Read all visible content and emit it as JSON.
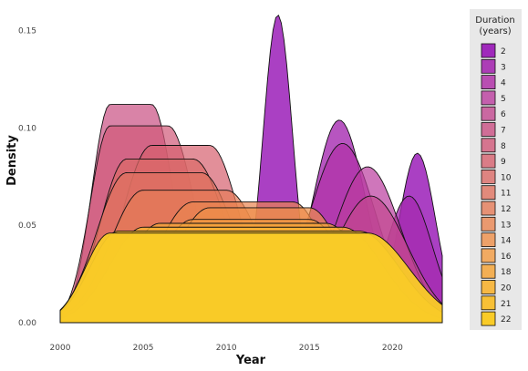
{
  "chart_data": {
    "type": "area",
    "subtype": "overlapping density",
    "xlabel": "Year",
    "ylabel": "Density",
    "xlim": [
      2000,
      2023
    ],
    "ylim": [
      0,
      0.16
    ],
    "x_ticks": [
      2000,
      2005,
      2010,
      2015,
      2020
    ],
    "y_ticks": [
      "0.00",
      "0.05",
      "0.10",
      "0.15"
    ],
    "legend": {
      "title_line1": "Duration",
      "title_line2": "(years)",
      "position": "right"
    },
    "series": [
      {
        "name": "2",
        "color": "#9B1FB8",
        "fill_opacity": 0.85,
        "peaks": [
          {
            "center": 2013.1,
            "peak": 0.158,
            "sd": 0.9
          },
          {
            "center": 2021.5,
            "peak": 0.087,
            "sd": 1.1
          }
        ]
      },
      {
        "name": "3",
        "color": "#A52AB0",
        "fill_opacity": 0.8,
        "peaks": [
          {
            "center": 2016.8,
            "peak": 0.104,
            "sd": 1.6
          },
          {
            "center": 2021.0,
            "peak": 0.065,
            "sd": 1.4
          }
        ]
      },
      {
        "name": "4",
        "color": "#B032A8",
        "fill_opacity": 0.75,
        "peaks": [
          {
            "center": 2017.0,
            "peak": 0.092,
            "sd": 2.0
          }
        ]
      },
      {
        "name": "5",
        "color": "#BA3C9E",
        "fill_opacity": 0.7,
        "peaks": [
          {
            "center": 2018.5,
            "peak": 0.08,
            "sd": 2.0
          }
        ]
      },
      {
        "name": "6",
        "color": "#C2478F",
        "fill_opacity": 0.7,
        "peaks": [
          {
            "center": 2018.7,
            "peak": 0.065,
            "sd": 2.2
          }
        ]
      },
      {
        "name": "7",
        "color": "#C94F82",
        "fill_opacity": 0.7,
        "plateau": [
          2003.0,
          2005.5
        ],
        "level": 0.112,
        "rise_sd": 1.1,
        "fall_sd": 1.3
      },
      {
        "name": "8",
        "color": "#D05878",
        "fill_opacity": 0.7,
        "plateau": [
          2003.0,
          2006.5
        ],
        "level": 0.101,
        "rise_sd": 1.2,
        "fall_sd": 1.6
      },
      {
        "name": "9",
        "color": "#D6606E",
        "fill_opacity": 0.7,
        "plateau": [
          2005.5,
          2009.0
        ],
        "level": 0.091,
        "rise_sd": 1.8,
        "fall_sd": 1.8
      },
      {
        "name": "10",
        "color": "#DB6A66",
        "fill_opacity": 0.7,
        "plateau": [
          2004.0,
          2008.0
        ],
        "level": 0.084,
        "rise_sd": 1.6,
        "fall_sd": 2.0
      },
      {
        "name": "11",
        "color": "#E0725F",
        "fill_opacity": 0.7,
        "plateau": [
          2004.0,
          2008.5
        ],
        "level": 0.077,
        "rise_sd": 1.8,
        "fall_sd": 2.0
      },
      {
        "name": "12",
        "color": "#E57B57",
        "fill_opacity": 0.7,
        "plateau": [
          2005.0,
          2010.0
        ],
        "level": 0.068,
        "rise_sd": 2.0,
        "fall_sd": 2.1
      },
      {
        "name": "13",
        "color": "#EA8550",
        "fill_opacity": 0.7,
        "plateau": [
          2008.0,
          2014.0
        ],
        "level": 0.062,
        "rise_sd": 2.2,
        "fall_sd": 2.0
      },
      {
        "name": "14",
        "color": "#EE8F48",
        "fill_opacity": 0.7,
        "plateau": [
          2009.0,
          2015.0
        ],
        "level": 0.059,
        "rise_sd": 2.2,
        "fall_sd": 2.0
      },
      {
        "name": "16",
        "color": "#F29A40",
        "fill_opacity": 0.7,
        "plateau": [
          2008.0,
          2015.0
        ],
        "level": 0.053,
        "rise_sd": 2.2,
        "fall_sd": 2.2
      },
      {
        "name": "18",
        "color": "#F5A53A",
        "fill_opacity": 0.75,
        "plateau": [
          2006.0,
          2016.0
        ],
        "level": 0.051,
        "rise_sd": 2.0,
        "fall_sd": 2.3
      },
      {
        "name": "20",
        "color": "#F7B232",
        "fill_opacity": 0.8,
        "plateau": [
          2005.0,
          2017.0
        ],
        "level": 0.049,
        "rise_sd": 2.0,
        "fall_sd": 2.4
      },
      {
        "name": "21",
        "color": "#F8BE2C",
        "fill_opacity": 0.85,
        "plateau": [
          2003.5,
          2018.0
        ],
        "level": 0.047,
        "rise_sd": 1.7,
        "fall_sd": 2.4
      },
      {
        "name": "22",
        "color": "#F9CB27",
        "fill_opacity": 0.95,
        "plateau": [
          2003.0,
          2018.5
        ],
        "level": 0.046,
        "rise_sd": 1.5,
        "fall_sd": 2.5
      }
    ]
  }
}
